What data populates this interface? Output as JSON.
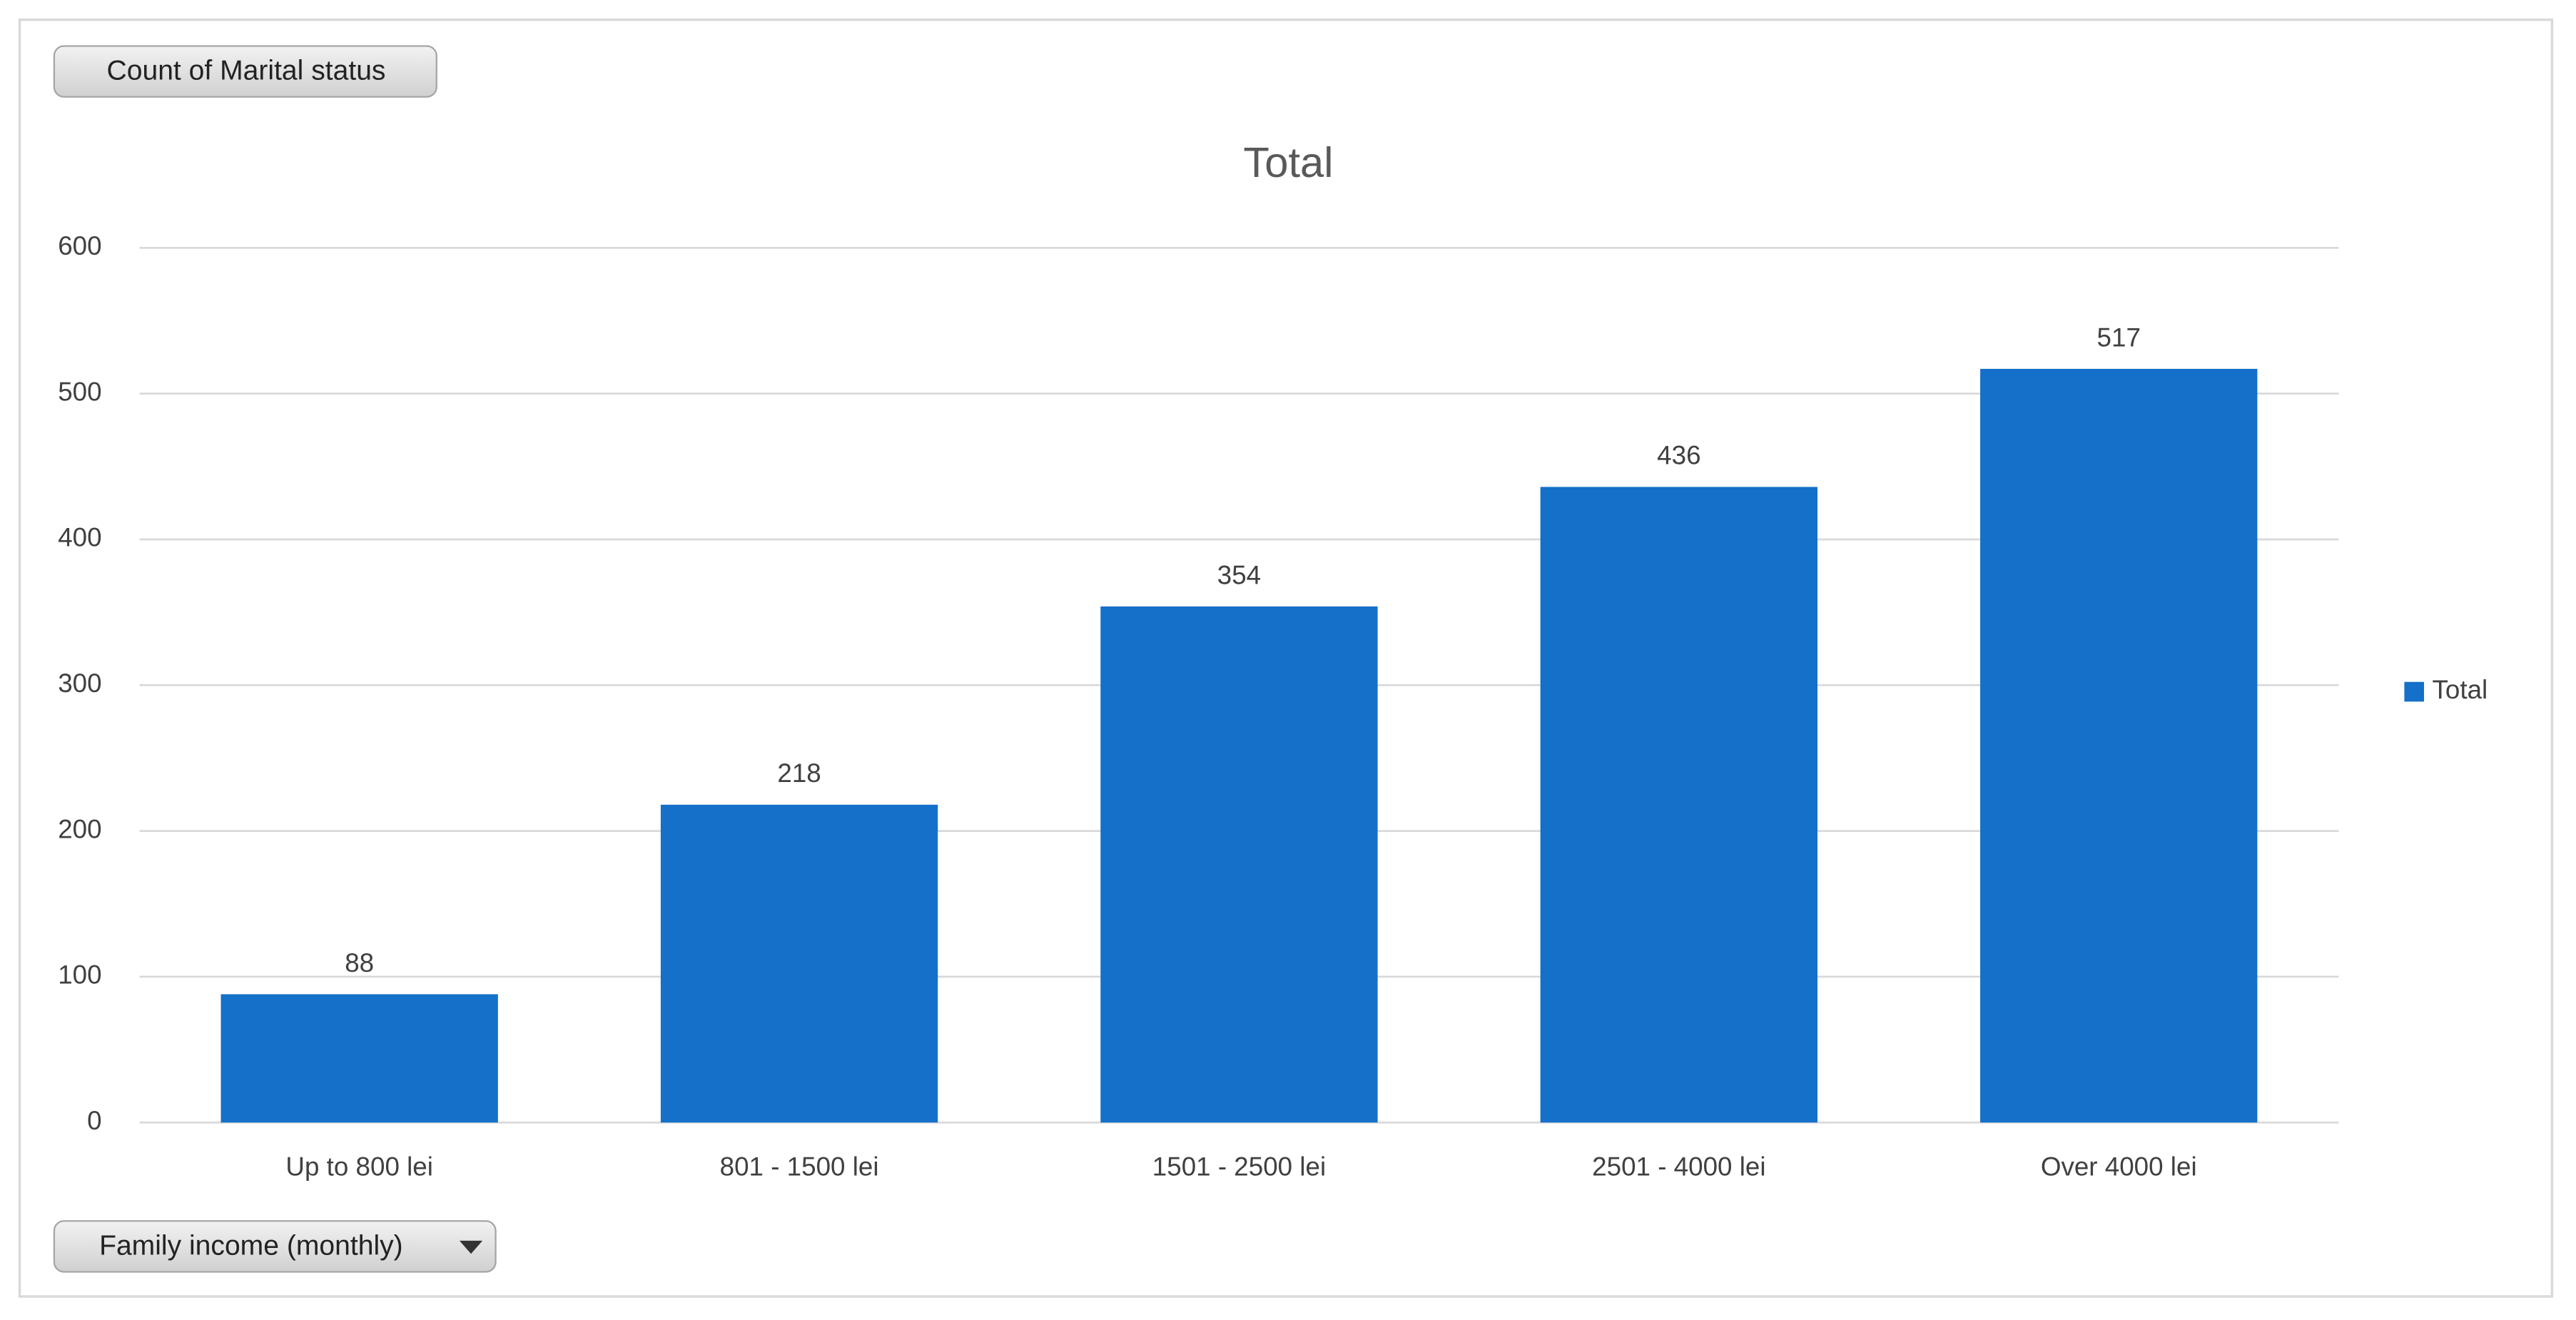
{
  "chart_data": {
    "type": "bar",
    "title": "Total",
    "value_field_button": "Count of Marital status",
    "axis_field_button": "Family income (monthly)",
    "categories": [
      "Up to 800 lei",
      "801 - 1500 lei",
      "1501 - 2500 lei",
      "2501 - 4000 lei",
      "Over 4000 lei"
    ],
    "series": [
      {
        "name": "Total",
        "color": "#1470c8",
        "values": [
          88,
          218,
          354,
          436,
          517
        ]
      }
    ],
    "ylim": [
      0,
      600
    ],
    "yticks": [
      0,
      100,
      200,
      300,
      400,
      500,
      600
    ],
    "grid": true,
    "legend": "right",
    "data_labels": true
  }
}
